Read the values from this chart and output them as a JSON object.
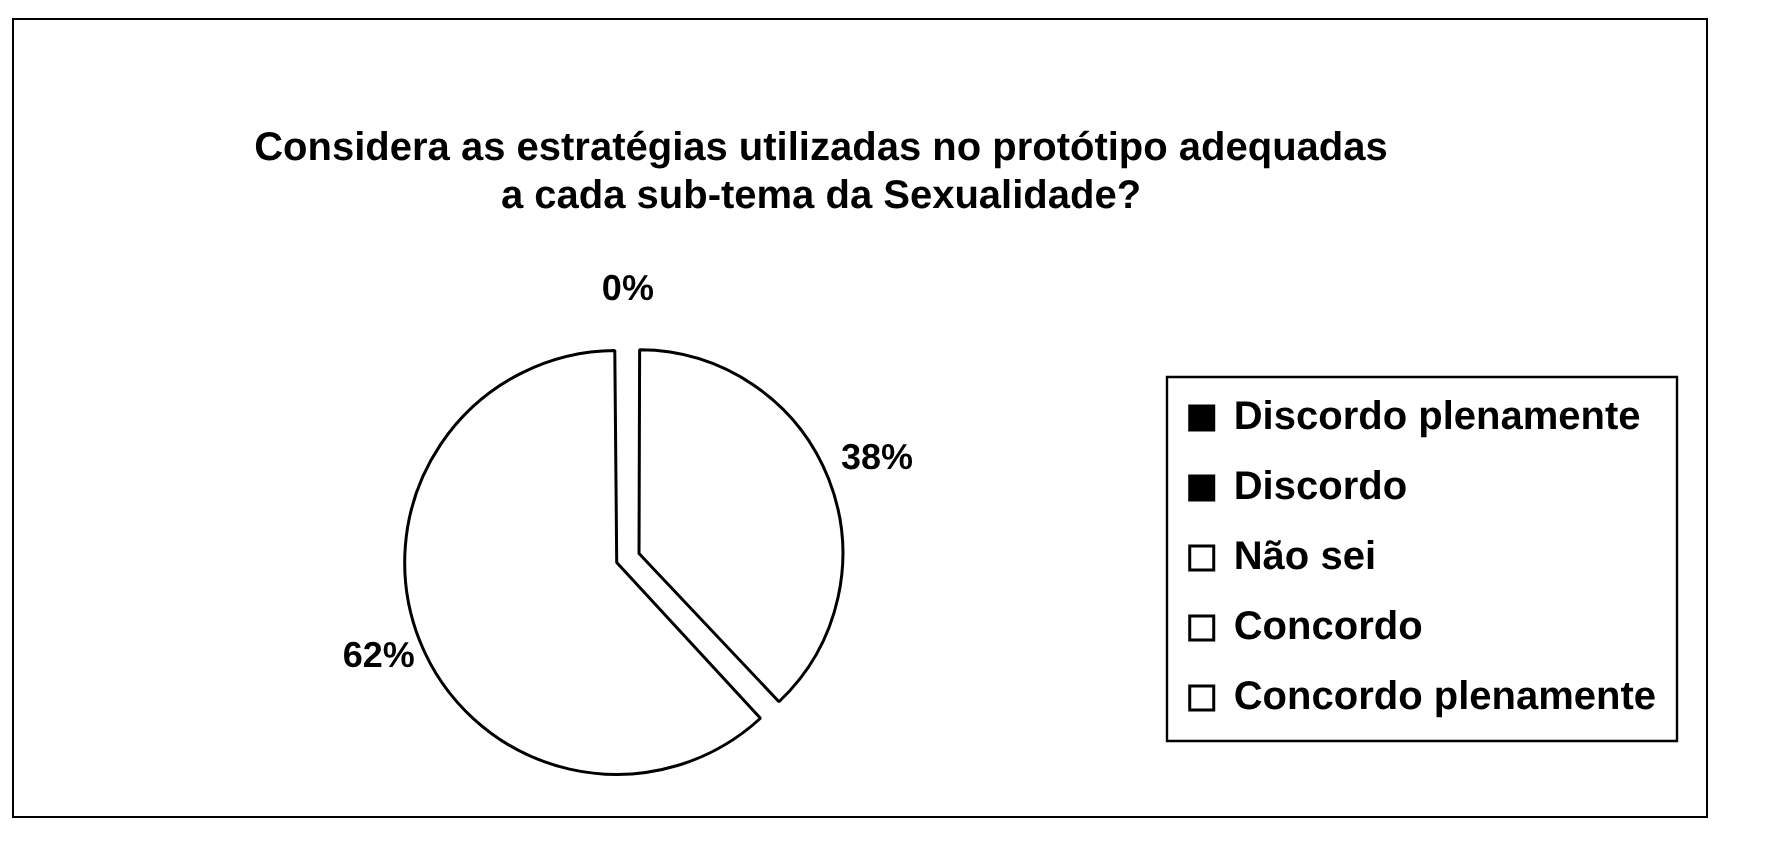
{
  "chart_data": {
    "type": "pie",
    "title": "Considera as estratégias utilizadas no protótipo adequadas a cada sub-tema da Sexualidade?",
    "categories": [
      "Discordo plenamente",
      "Discordo",
      "Não sei",
      "Concordo",
      "Concordo plenamente"
    ],
    "values": [
      0,
      0,
      0,
      38,
      62
    ],
    "colors": [
      "#000000",
      "#000000",
      "#ffffff",
      "#ffffff",
      "#ffffff"
    ],
    "value_labels": [
      null,
      null,
      "0%",
      "38%",
      "62%"
    ],
    "legend": "right"
  }
}
